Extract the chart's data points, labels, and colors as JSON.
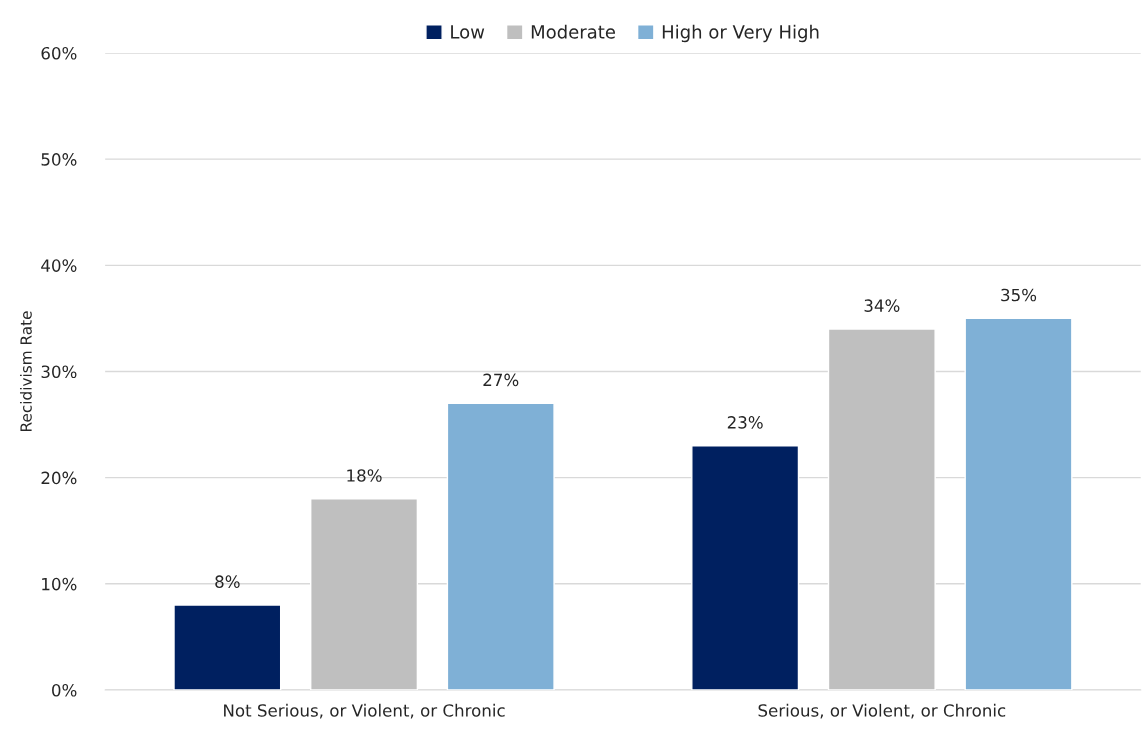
{
  "chart_data": {
    "type": "bar",
    "ylabel": "Recidivism Rate",
    "categories": [
      "Not Serious, or Violent, or Chronic",
      "Serious, or Violent, or Chronic"
    ],
    "series": [
      {
        "name": "Low",
        "color": "#002060",
        "values": [
          8,
          23
        ],
        "value_labels": [
          "8%",
          "23%"
        ]
      },
      {
        "name": "Moderate",
        "color": "#bfbfbf",
        "values": [
          18,
          34
        ],
        "value_labels": [
          "18%",
          "34%"
        ]
      },
      {
        "name": "High or Very High",
        "color": "#7fb0d6",
        "values": [
          27,
          35
        ],
        "value_labels": [
          "27%",
          "35%"
        ]
      }
    ],
    "ylim": [
      0,
      60
    ],
    "yticks": [
      {
        "value": 0,
        "label": "0%"
      },
      {
        "value": 10,
        "label": "10%"
      },
      {
        "value": 20,
        "label": "20%"
      },
      {
        "value": 30,
        "label": "30%"
      },
      {
        "value": 40,
        "label": "40%"
      },
      {
        "value": 50,
        "label": "50%"
      },
      {
        "value": 60,
        "label": "60%"
      }
    ],
    "grid": "y",
    "legend": "top"
  }
}
